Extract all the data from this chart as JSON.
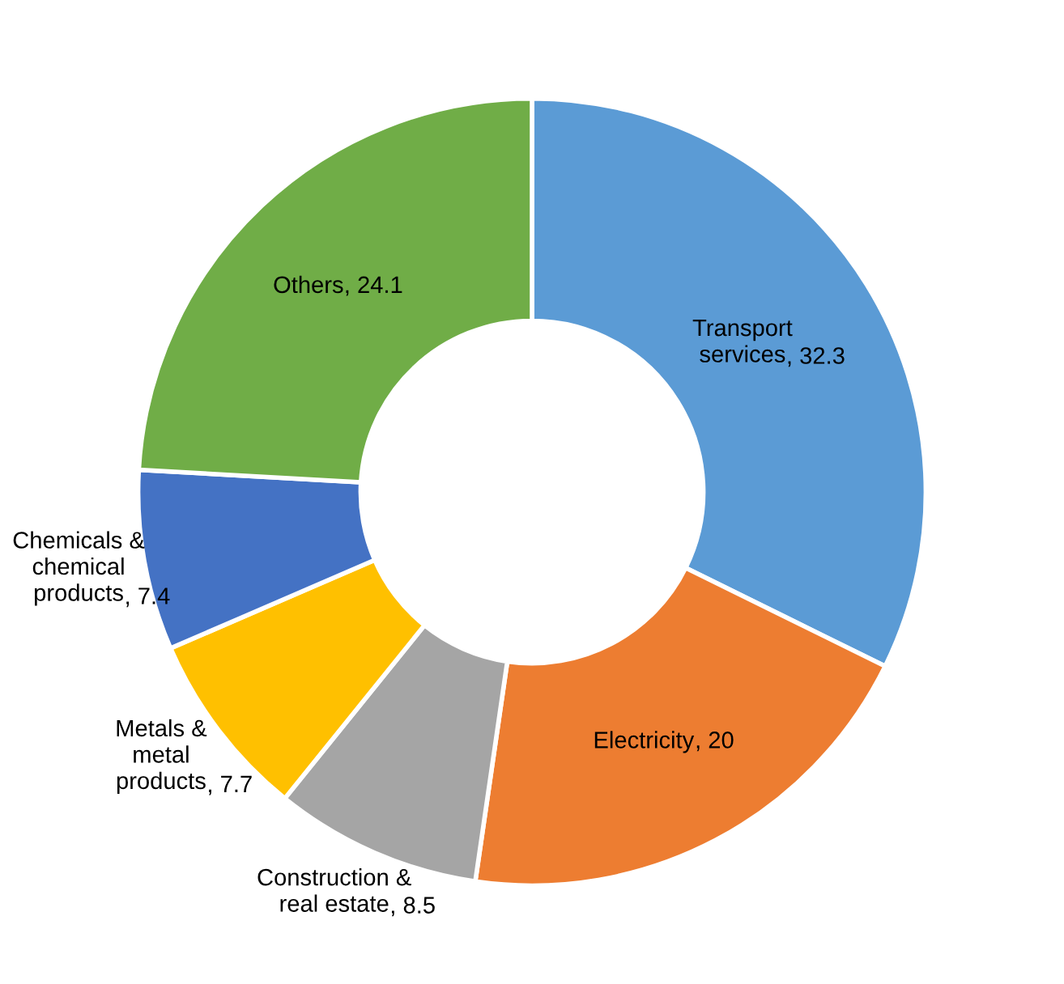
{
  "chart_data": {
    "type": "donut",
    "categories": [
      "Transport\nservices",
      "Electricity",
      "Construction &\nreal estate",
      "Metals &\nmetal\nproducts",
      "Chemicals &\nchemical\nproducts",
      "Others"
    ],
    "values": [
      32.3,
      20,
      8.5,
      7.7,
      7.4,
      24.1
    ],
    "colors": [
      "#5b9bd5",
      "#ed7d31",
      "#a5a5a5",
      "#ffc000",
      "#4472c4",
      "#70ad47"
    ],
    "value_labels": [
      ", 32.3",
      ", 20",
      ", 8.5",
      ", 7.7",
      ", 7.4",
      ", 24.1"
    ],
    "legend": false
  }
}
